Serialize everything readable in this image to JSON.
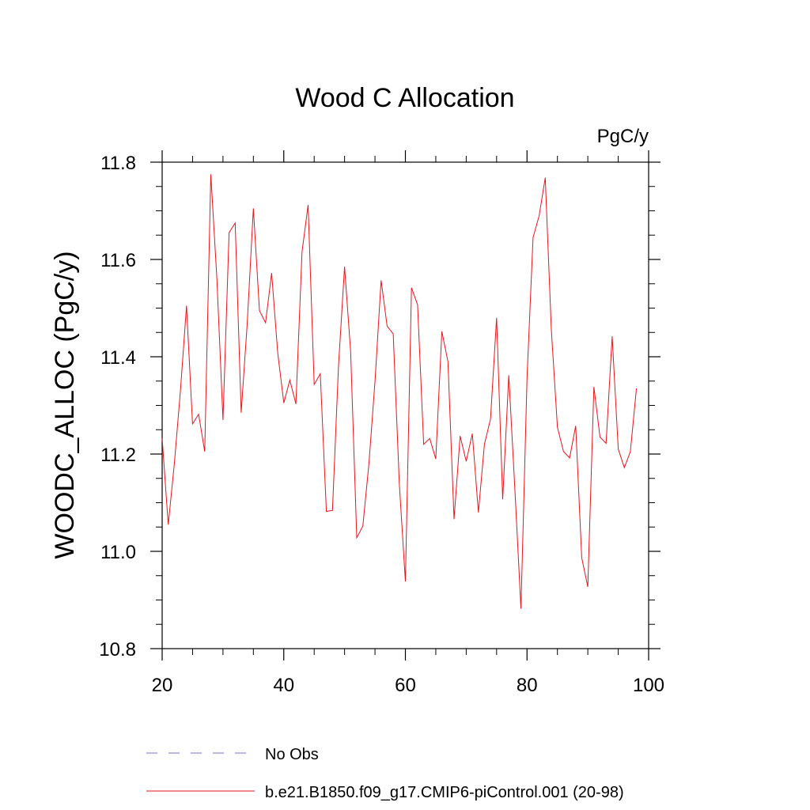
{
  "chart_data": {
    "type": "line",
    "title": "Wood C Allocation",
    "units": "PgC/y",
    "ylabel": "WOODC_ALLOC  (PgC/y)",
    "xlabel": "",
    "xlim": [
      20,
      100
    ],
    "ylim": [
      10.8,
      11.8
    ],
    "x_ticks": [
      20,
      40,
      60,
      80,
      100
    ],
    "x_tick_labels": [
      "20",
      "40",
      "60",
      "80",
      "100"
    ],
    "y_ticks": [
      10.8,
      11.0,
      11.2,
      11.4,
      11.6,
      11.8
    ],
    "y_tick_labels": [
      "10.8",
      "11.0",
      "11.2",
      "11.4",
      "11.6",
      "11.8"
    ],
    "grid": false,
    "legend_position": "bottom",
    "legend": [
      {
        "label": "No Obs",
        "color": "#7b6fd6",
        "style": "dashed"
      },
      {
        "label": "b.e21.B1850.f09_g17.CMIP6-piControl.001 (20-98)",
        "color": "#e8151b",
        "style": "solid"
      }
    ],
    "series": [
      {
        "name": "b.e21.B1850.f09_g17.CMIP6-piControl.001 (20-98)",
        "color": "#e8151b",
        "x": [
          20,
          21,
          22,
          23,
          24,
          25,
          26,
          27,
          28,
          29,
          30,
          31,
          32,
          33,
          34,
          35,
          36,
          37,
          38,
          39,
          40,
          41,
          42,
          43,
          44,
          45,
          46,
          47,
          48,
          49,
          50,
          51,
          52,
          53,
          54,
          55,
          56,
          57,
          58,
          59,
          60,
          61,
          62,
          63,
          64,
          65,
          66,
          67,
          68,
          69,
          70,
          71,
          72,
          73,
          74,
          75,
          76,
          77,
          78,
          79,
          80,
          81,
          82,
          83,
          84,
          85,
          86,
          87,
          88,
          89,
          90,
          91,
          92,
          93,
          94,
          95,
          96,
          97,
          98
        ],
        "values": [
          11.232,
          11.055,
          11.18,
          11.33,
          11.505,
          11.262,
          11.282,
          11.205,
          11.775,
          11.56,
          11.27,
          11.655,
          11.675,
          11.285,
          11.47,
          11.705,
          11.495,
          11.47,
          11.572,
          11.408,
          11.305,
          11.352,
          11.303,
          11.615,
          11.712,
          11.343,
          11.365,
          11.082,
          11.084,
          11.38,
          11.585,
          11.41,
          11.028,
          11.052,
          11.18,
          11.35,
          11.557,
          11.463,
          11.447,
          11.14,
          10.938,
          11.542,
          11.507,
          11.22,
          11.232,
          11.19,
          11.452,
          11.39,
          11.066,
          11.237,
          11.185,
          11.242,
          11.08,
          11.22,
          11.272,
          11.48,
          11.107,
          11.362,
          11.128,
          10.882,
          11.358,
          11.645,
          11.69,
          11.768,
          11.455,
          11.255,
          11.205,
          11.192,
          11.258,
          10.987,
          10.927,
          11.338,
          11.235,
          11.222,
          11.442,
          11.21,
          11.172,
          11.205,
          11.335
        ]
      }
    ]
  }
}
